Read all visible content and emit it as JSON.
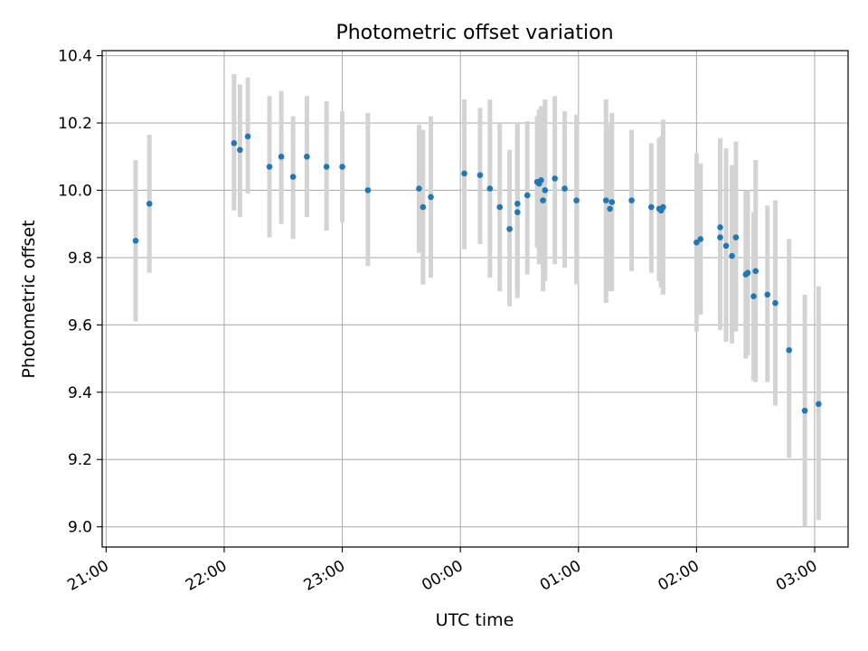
{
  "chart_data": {
    "type": "scatter",
    "title": "Photometric offset variation",
    "xlabel": "UTC time",
    "ylabel": "Photometric offset",
    "x_ticks": [
      "21:00",
      "22:00",
      "23:00",
      "00:00",
      "01:00",
      "02:00",
      "03:00"
    ],
    "y_ticks": [
      "9.0",
      "9.2",
      "9.4",
      "9.6",
      "9.8",
      "10.0",
      "10.2",
      "10.4"
    ],
    "xlim": [
      "20:58",
      "03:17"
    ],
    "ylim": [
      8.94,
      10.415
    ],
    "grid": true,
    "point_color": "#1f77b4",
    "errorbar_color": "#d3d3d3",
    "series": [
      {
        "points": [
          {
            "x": "21:15",
            "y": 9.85,
            "ylo": 9.61,
            "yhi": 10.09
          },
          {
            "x": "21:22",
            "y": 9.96,
            "ylo": 9.755,
            "yhi": 10.165
          },
          {
            "x": "22:05",
            "y": 10.14,
            "ylo": 9.94,
            "yhi": 10.345
          },
          {
            "x": "22:08",
            "y": 10.12,
            "ylo": 9.92,
            "yhi": 10.315
          },
          {
            "x": "22:12",
            "y": 10.16,
            "ylo": 9.99,
            "yhi": 10.335
          },
          {
            "x": "22:23",
            "y": 10.07,
            "ylo": 9.86,
            "yhi": 10.28
          },
          {
            "x": "22:29",
            "y": 10.1,
            "ylo": 9.9,
            "yhi": 10.295
          },
          {
            "x": "22:35",
            "y": 10.04,
            "ylo": 9.855,
            "yhi": 10.22
          },
          {
            "x": "22:42",
            "y": 10.1,
            "ylo": 9.92,
            "yhi": 10.28
          },
          {
            "x": "22:52",
            "y": 10.07,
            "ylo": 9.88,
            "yhi": 10.265
          },
          {
            "x": "23:00",
            "y": 10.07,
            "ylo": 9.905,
            "yhi": 10.235
          },
          {
            "x": "23:13",
            "y": 10.0,
            "ylo": 9.775,
            "yhi": 10.23
          },
          {
            "x": "23:39",
            "y": 10.005,
            "ylo": 9.815,
            "yhi": 10.195
          },
          {
            "x": "23:41",
            "y": 9.95,
            "ylo": 9.72,
            "yhi": 10.18
          },
          {
            "x": "23:45",
            "y": 9.98,
            "ylo": 9.74,
            "yhi": 10.22
          },
          {
            "x": "00:02",
            "y": 10.05,
            "ylo": 9.825,
            "yhi": 10.27
          },
          {
            "x": "00:10",
            "y": 10.045,
            "ylo": 9.84,
            "yhi": 10.245
          },
          {
            "x": "00:15",
            "y": 10.005,
            "ylo": 9.74,
            "yhi": 10.27
          },
          {
            "x": "00:20",
            "y": 9.95,
            "ylo": 9.7,
            "yhi": 10.2
          },
          {
            "x": "00:25",
            "y": 9.885,
            "ylo": 9.655,
            "yhi": 10.12
          },
          {
            "x": "00:29",
            "y": 9.935,
            "ylo": 9.68,
            "yhi": 10.195
          },
          {
            "x": "00:29",
            "y": 9.96,
            "ylo": 9.69,
            "yhi": 10.2
          },
          {
            "x": "00:34",
            "y": 9.985,
            "ylo": 9.75,
            "yhi": 10.205
          },
          {
            "x": "00:39",
            "y": 10.025,
            "ylo": 9.83,
            "yhi": 10.22
          },
          {
            "x": "00:40",
            "y": 10.02,
            "ylo": 9.78,
            "yhi": 10.24
          },
          {
            "x": "00:41",
            "y": 10.03,
            "ylo": 9.82,
            "yhi": 10.25
          },
          {
            "x": "00:42",
            "y": 9.97,
            "ylo": 9.7,
            "yhi": 10.24
          },
          {
            "x": "00:43",
            "y": 10.0,
            "ylo": 9.73,
            "yhi": 10.27
          },
          {
            "x": "00:48",
            "y": 10.035,
            "ylo": 9.78,
            "yhi": 10.28
          },
          {
            "x": "00:53",
            "y": 10.005,
            "ylo": 9.77,
            "yhi": 10.235
          },
          {
            "x": "00:59",
            "y": 9.97,
            "ylo": 9.72,
            "yhi": 10.225
          },
          {
            "x": "01:14",
            "y": 9.97,
            "ylo": 9.665,
            "yhi": 10.27
          },
          {
            "x": "01:16",
            "y": 9.945,
            "ylo": 9.7,
            "yhi": 10.195
          },
          {
            "x": "01:17",
            "y": 9.965,
            "ylo": 9.7,
            "yhi": 10.23
          },
          {
            "x": "01:27",
            "y": 9.97,
            "ylo": 9.76,
            "yhi": 10.18
          },
          {
            "x": "01:37",
            "y": 9.95,
            "ylo": 9.755,
            "yhi": 10.14
          },
          {
            "x": "01:41",
            "y": 9.945,
            "ylo": 9.73,
            "yhi": 10.155
          },
          {
            "x": "01:42",
            "y": 9.94,
            "ylo": 9.71,
            "yhi": 10.16
          },
          {
            "x": "01:43",
            "y": 9.95,
            "ylo": 9.69,
            "yhi": 10.21
          },
          {
            "x": "02:00",
            "y": 9.845,
            "ylo": 9.58,
            "yhi": 10.11
          },
          {
            "x": "02:02",
            "y": 9.855,
            "ylo": 9.63,
            "yhi": 10.08
          },
          {
            "x": "02:12",
            "y": 9.89,
            "ylo": 9.62,
            "yhi": 10.155
          },
          {
            "x": "02:12",
            "y": 9.86,
            "ylo": 9.585,
            "yhi": 10.14
          },
          {
            "x": "02:15",
            "y": 9.835,
            "ylo": 9.55,
            "yhi": 10.125
          },
          {
            "x": "02:18",
            "y": 9.805,
            "ylo": 9.545,
            "yhi": 10.075
          },
          {
            "x": "02:20",
            "y": 9.86,
            "ylo": 9.58,
            "yhi": 10.145
          },
          {
            "x": "02:25",
            "y": 9.75,
            "ylo": 9.5,
            "yhi": 10.0
          },
          {
            "x": "02:26",
            "y": 9.755,
            "ylo": 9.51,
            "yhi": 10.0
          },
          {
            "x": "02:29",
            "y": 9.685,
            "ylo": 9.435,
            "yhi": 9.935
          },
          {
            "x": "02:30",
            "y": 9.76,
            "ylo": 9.43,
            "yhi": 10.09
          },
          {
            "x": "02:36",
            "y": 9.69,
            "ylo": 9.43,
            "yhi": 9.955
          },
          {
            "x": "02:40",
            "y": 9.665,
            "ylo": 9.36,
            "yhi": 9.97
          },
          {
            "x": "02:47",
            "y": 9.525,
            "ylo": 9.205,
            "yhi": 9.855
          },
          {
            "x": "02:55",
            "y": 9.345,
            "ylo": 9.0,
            "yhi": 9.69
          },
          {
            "x": "03:02",
            "y": 9.365,
            "ylo": 9.02,
            "yhi": 9.715
          }
        ]
      }
    ]
  }
}
